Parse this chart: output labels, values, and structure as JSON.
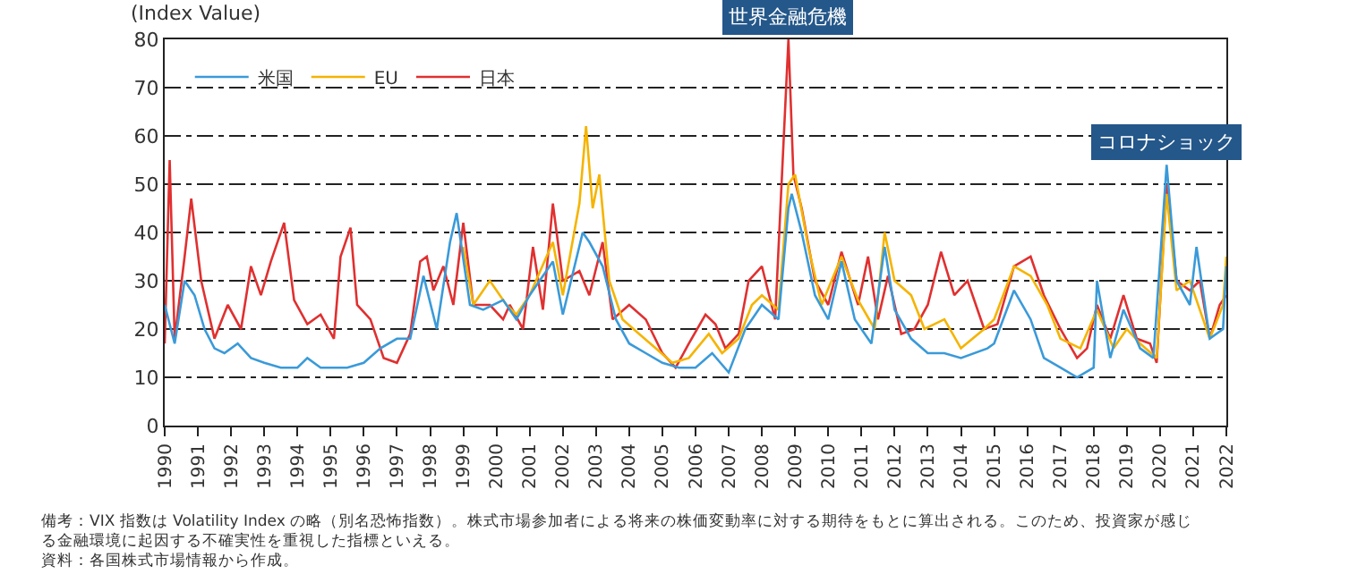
{
  "chart_data": {
    "type": "line",
    "ylabel": "(Index Value)",
    "xlim": [
      1990,
      2022
    ],
    "xticks": [
      1990,
      1991,
      1992,
      1993,
      1994,
      1995,
      1996,
      1997,
      1998,
      1999,
      2000,
      2001,
      2002,
      2003,
      2004,
      2005,
      2006,
      2007,
      2008,
      2009,
      2010,
      2011,
      2012,
      2013,
      2014,
      2015,
      2016,
      2017,
      2018,
      2019,
      2020,
      2021,
      2022
    ],
    "ylim": [
      0,
      80
    ],
    "yticks": [
      0,
      10,
      20,
      30,
      40,
      50,
      60,
      70,
      80
    ],
    "grid": "y",
    "legend": "top left",
    "line_style": "solid",
    "marker": "none",
    "series": [
      {
        "name": "米国",
        "color": "#3a9ad9",
        "x": [
          1990.0,
          1990.3,
          1990.6,
          1990.9,
          1991.2,
          1991.5,
          1991.8,
          1992.2,
          1992.6,
          1993.0,
          1993.5,
          1994.0,
          1994.3,
          1994.7,
          1995.0,
          1995.5,
          1996.0,
          1996.5,
          1997.0,
          1997.4,
          1997.8,
          1998.2,
          1998.6,
          1998.8,
          1999.2,
          1999.6,
          2000.2,
          2000.6,
          2001.0,
          2001.7,
          2002.0,
          2002.6,
          2002.8,
          2003.2,
          2003.6,
          2004.0,
          2004.5,
          2005.0,
          2005.5,
          2006.0,
          2006.5,
          2007.0,
          2007.5,
          2008.0,
          2008.5,
          2008.8,
          2008.9,
          2009.2,
          2009.6,
          2010.0,
          2010.4,
          2010.8,
          2011.3,
          2011.7,
          2012.0,
          2012.5,
          2013.0,
          2013.5,
          2014.0,
          2014.8,
          2015.0,
          2015.6,
          2016.1,
          2016.5,
          2017.0,
          2017.5,
          2018.0,
          2018.1,
          2018.5,
          2018.9,
          2019.4,
          2019.8,
          2020.2,
          2020.5,
          2020.9,
          2021.1,
          2021.5,
          2021.9,
          2022.0
        ],
        "values": [
          25,
          17,
          30,
          27,
          20,
          16,
          15,
          17,
          14,
          13,
          12,
          12,
          14,
          12,
          12,
          12,
          13,
          16,
          18,
          18,
          31,
          20,
          38,
          44,
          25,
          24,
          26,
          22,
          27,
          34,
          23,
          40,
          38,
          33,
          22,
          17,
          15,
          13,
          12,
          12,
          15,
          11,
          20,
          25,
          22,
          45,
          48,
          40,
          27,
          22,
          34,
          22,
          17,
          37,
          24,
          18,
          15,
          15,
          14,
          16,
          17,
          28,
          22,
          14,
          12,
          10,
          12,
          30,
          14,
          24,
          16,
          14,
          54,
          30,
          25,
          37,
          18,
          20,
          33
        ]
      },
      {
        "name": "EU",
        "color": "#f5b400",
        "x": [
          1999.0,
          1999.3,
          1999.8,
          2000.3,
          2000.6,
          2001.0,
          2001.7,
          2002.0,
          2002.5,
          2002.7,
          2002.9,
          2003.1,
          2003.4,
          2003.8,
          2004.3,
          2004.8,
          2005.3,
          2005.8,
          2006.4,
          2006.8,
          2007.3,
          2007.7,
          2008.0,
          2008.5,
          2008.8,
          2009.0,
          2009.4,
          2009.8,
          2010.4,
          2010.9,
          2011.4,
          2011.7,
          2012.0,
          2012.5,
          2012.9,
          2013.5,
          2014.0,
          2014.7,
          2015.0,
          2015.6,
          2016.1,
          2016.6,
          2017.0,
          2017.6,
          2018.1,
          2018.6,
          2019.0,
          2019.4,
          2019.9,
          2020.2,
          2020.5,
          2020.9,
          2021.1,
          2021.5,
          2021.9,
          2022.0
        ],
        "values": [
          37,
          25,
          30,
          25,
          23,
          27,
          38,
          27,
          46,
          62,
          45,
          52,
          30,
          22,
          19,
          16,
          13,
          14,
          19,
          15,
          18,
          25,
          27,
          24,
          50,
          52,
          37,
          25,
          35,
          26,
          20,
          40,
          30,
          27,
          20,
          22,
          16,
          20,
          22,
          33,
          31,
          25,
          18,
          16,
          24,
          16,
          20,
          17,
          14,
          48,
          28,
          30,
          26,
          18,
          25,
          35
        ]
      },
      {
        "name": "日本",
        "color": "#e03030",
        "x": [
          1990.0,
          1990.15,
          1990.3,
          1990.6,
          1990.8,
          1991.1,
          1991.5,
          1991.9,
          1992.3,
          1992.6,
          1992.9,
          1993.2,
          1993.6,
          1993.9,
          1994.3,
          1994.7,
          1995.1,
          1995.3,
          1995.6,
          1995.8,
          1996.2,
          1996.6,
          1997.0,
          1997.4,
          1997.7,
          1997.9,
          1998.1,
          1998.4,
          1998.7,
          1999.0,
          1999.3,
          1999.8,
          2000.2,
          2000.4,
          2000.8,
          2001.1,
          2001.4,
          2001.7,
          2002.0,
          2002.5,
          2002.8,
          2003.2,
          2003.5,
          2004.0,
          2004.5,
          2005.0,
          2005.4,
          2005.8,
          2006.3,
          2006.6,
          2006.9,
          2007.3,
          2007.6,
          2008.0,
          2008.4,
          2008.8,
          2008.95,
          2009.2,
          2009.6,
          2010.0,
          2010.4,
          2010.9,
          2011.2,
          2011.5,
          2011.8,
          2012.2,
          2012.6,
          2013.0,
          2013.4,
          2013.8,
          2014.2,
          2014.7,
          2015.1,
          2015.6,
          2016.1,
          2016.5,
          2017.0,
          2017.5,
          2017.8,
          2018.1,
          2018.5,
          2018.9,
          2019.3,
          2019.7,
          2019.9,
          2020.2,
          2020.5,
          2020.9,
          2021.2,
          2021.5,
          2021.8,
          2022.0
        ],
        "values": [
          17,
          55,
          18,
          35,
          47,
          30,
          18,
          25,
          20,
          33,
          27,
          34,
          42,
          26,
          21,
          23,
          18,
          35,
          41,
          25,
          22,
          14,
          13,
          19,
          34,
          35,
          28,
          33,
          25,
          42,
          25,
          25,
          22,
          25,
          20,
          37,
          24,
          46,
          30,
          32,
          27,
          38,
          22,
          25,
          22,
          15,
          12,
          17,
          23,
          21,
          16,
          19,
          30,
          33,
          22,
          80,
          52,
          45,
          30,
          25,
          36,
          25,
          35,
          22,
          31,
          19,
          20,
          25,
          36,
          27,
          30,
          20,
          21,
          33,
          35,
          27,
          20,
          14,
          16,
          25,
          18,
          27,
          18,
          17,
          13,
          50,
          30,
          28,
          30,
          18,
          25,
          27
        ]
      }
    ],
    "annotations": [
      {
        "text": "世界金融危機",
        "x": 2008.8,
        "y": 80
      },
      {
        "text": "コロナショック",
        "x": 2020.2,
        "y": 54
      },
      "備考：VIX 指数は Volatility Index の略（別名恐怖指数）。株式市場参加者による将来の株価変動率に対する期待をもとに算出される。このため、投資家が感じる金融環境に起因する不確実性を重視した指標といえる。",
      "資料：各国株式市場情報から作成。"
    ]
  }
}
